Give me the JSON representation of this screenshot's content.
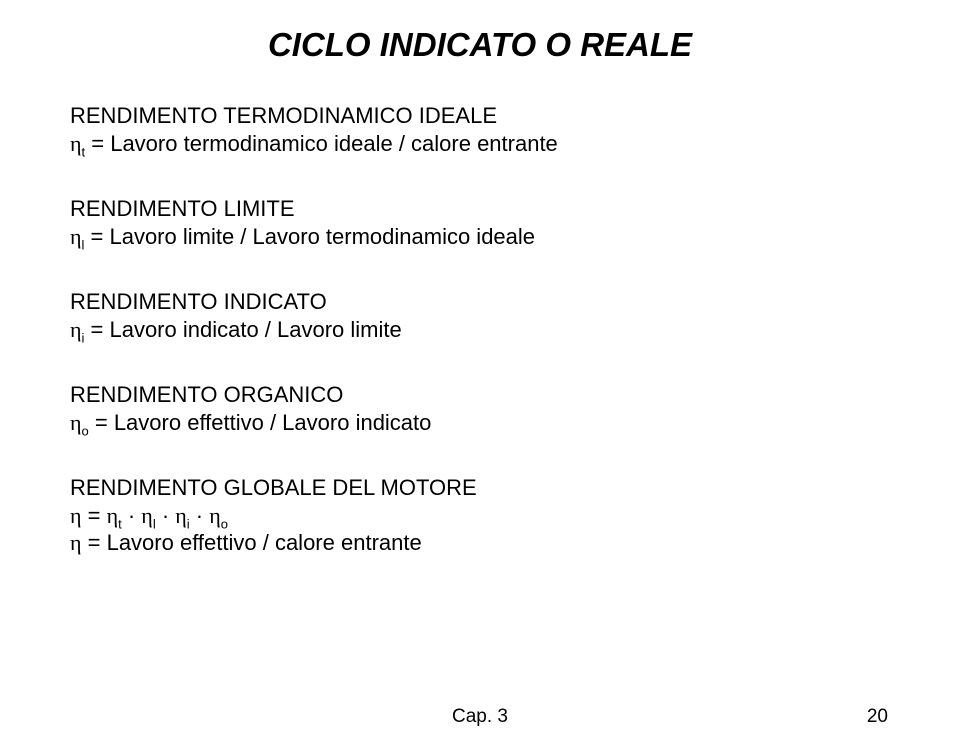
{
  "title": "CICLO  INDICATO O REALE",
  "sections": [
    {
      "heading": "RENDIMENTO TERMODINAMICO IDEALE",
      "eta": "η",
      "sub": "t",
      "eq": " = Lavoro termodinamico ideale / calore entrante"
    },
    {
      "heading": "RENDIMENTO LIMITE",
      "eta": "η",
      "sub": "l",
      "eq": " = Lavoro limite / Lavoro termodinamico ideale"
    },
    {
      "heading": "RENDIMENTO INDICATO",
      "eta": "η",
      "sub": "i",
      "eq": " = Lavoro indicato / Lavoro limite"
    },
    {
      "heading": "RENDIMENTO ORGANICO",
      "eta": "η",
      "sub": "o",
      "eq": " = Lavoro effettivo / Lavoro indicato"
    }
  ],
  "final": {
    "heading": "RENDIMENTO GLOBALE DEL MOTORE",
    "line1": {
      "eta": "η",
      "eq_pre": " = ",
      "t1_eta": "η",
      "t1_sub": "t",
      "dot1": " · ",
      "t2_eta": "η",
      "t2_sub": "l",
      "dot2": " · ",
      "t3_eta": "η",
      "t3_sub": "i",
      "dot3": " · ",
      "t4_eta": "η",
      "t4_sub": "o"
    },
    "line2": {
      "eta": "η",
      "eq": " = Lavoro effettivo / calore entrante"
    }
  },
  "footer": "Cap. 3",
  "pagenum": "20"
}
